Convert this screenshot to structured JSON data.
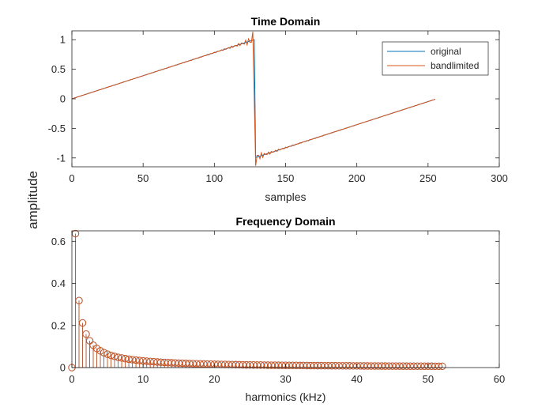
{
  "figure": {
    "shared_ylabel": "amplitude",
    "colors": {
      "original": "#0072BD",
      "bandlimited": "#D95319",
      "axis": "#262626",
      "background": "#ffffff"
    }
  },
  "chart_data": [
    {
      "type": "line",
      "title": "Time Domain",
      "xlabel": "samples",
      "ylabel": "",
      "xlim": [
        0,
        300
      ],
      "ylim": [
        -1.15,
        1.15
      ],
      "xticks": [
        0,
        50,
        100,
        150,
        200,
        250,
        300
      ],
      "yticks": [
        -1,
        -0.5,
        0,
        0.5,
        1
      ],
      "xtick_labels": [
        "0",
        "50",
        "100",
        "150",
        "200",
        "250",
        "300"
      ],
      "ytick_labels": [
        "-1",
        "-0.5",
        "0",
        "0.5",
        "1"
      ],
      "grid": false,
      "legend": {
        "position": "top-right",
        "entries": [
          "original",
          "bandlimited"
        ]
      },
      "series": [
        {
          "name": "original",
          "generator": "sawtooth",
          "period": 256,
          "x_range": [
            0,
            255
          ],
          "color": "#0072BD"
        },
        {
          "name": "bandlimited",
          "generator": "fourier-sawtooth",
          "harmonics": 105,
          "period": 256,
          "x_range": [
            0,
            255
          ],
          "color": "#D95319"
        }
      ]
    },
    {
      "type": "stem",
      "title": "Frequency Domain",
      "xlabel": "harmonics (kHz)",
      "ylabel": "",
      "xlim": [
        0,
        60
      ],
      "ylim": [
        0,
        0.65
      ],
      "xticks": [
        0,
        10,
        20,
        30,
        40,
        50,
        60
      ],
      "yticks": [
        0,
        0.2,
        0.4,
        0.6
      ],
      "xtick_labels": [
        "0",
        "10",
        "20",
        "30",
        "40",
        "50",
        "60"
      ],
      "ytick_labels": [
        "0",
        "0.2",
        "0.4",
        "0.6"
      ],
      "grid": false,
      "x_start": 0,
      "x_step": 0.5,
      "count": 105,
      "series": [
        {
          "name": "original",
          "amplitude_rule": "0.6366/k, k=1..104; 0 at DC",
          "peak": 0.6366,
          "color": "#0072BD"
        },
        {
          "name": "bandlimited",
          "amplitude_rule": "0.6366/k, k=1..104; 0 at DC",
          "peak": 0.6366,
          "color": "#D95319"
        }
      ]
    }
  ]
}
